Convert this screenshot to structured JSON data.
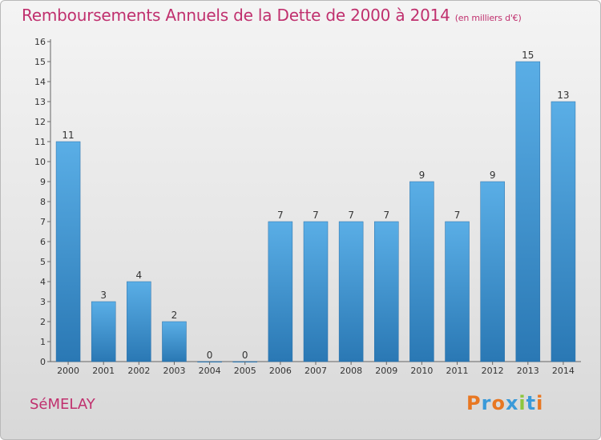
{
  "header": {
    "title": "Remboursements Annuels de la Dette de 2000 à 2014",
    "unit": "(en milliers d'€)"
  },
  "footer": {
    "town": "SéMELAY",
    "brand": {
      "letters": [
        "P",
        "r",
        "o",
        "x",
        "i",
        "t",
        "i"
      ],
      "colors": [
        "#e87722",
        "#3a9ad9",
        "#e87722",
        "#3a9ad9",
        "#8cc63f",
        "#3a9ad9",
        "#e87722"
      ]
    }
  },
  "colors": {
    "title": "#c0306e",
    "bar_light": "#5aaee6",
    "bar_dark": "#2a78b4"
  },
  "chart_data": {
    "type": "bar",
    "categories": [
      "2000",
      "2001",
      "2002",
      "2003",
      "2004",
      "2005",
      "2006",
      "2007",
      "2008",
      "2009",
      "2010",
      "2011",
      "2012",
      "2013",
      "2014"
    ],
    "values": [
      11,
      3,
      4,
      2,
      0,
      0,
      7,
      7,
      7,
      7,
      9,
      7,
      9,
      15,
      13
    ],
    "data_labels": [
      "11",
      "3",
      "4",
      "2",
      "0",
      "0",
      "7",
      "7",
      "7",
      "7",
      "9",
      "7",
      "9",
      "15",
      "13"
    ],
    "yticks": [
      0,
      1,
      2,
      3,
      4,
      5,
      6,
      7,
      8,
      9,
      10,
      11,
      12,
      13,
      14,
      15,
      16
    ],
    "ylim": [
      0,
      16
    ],
    "xlabel": "",
    "ylabel": "",
    "grid": false
  }
}
